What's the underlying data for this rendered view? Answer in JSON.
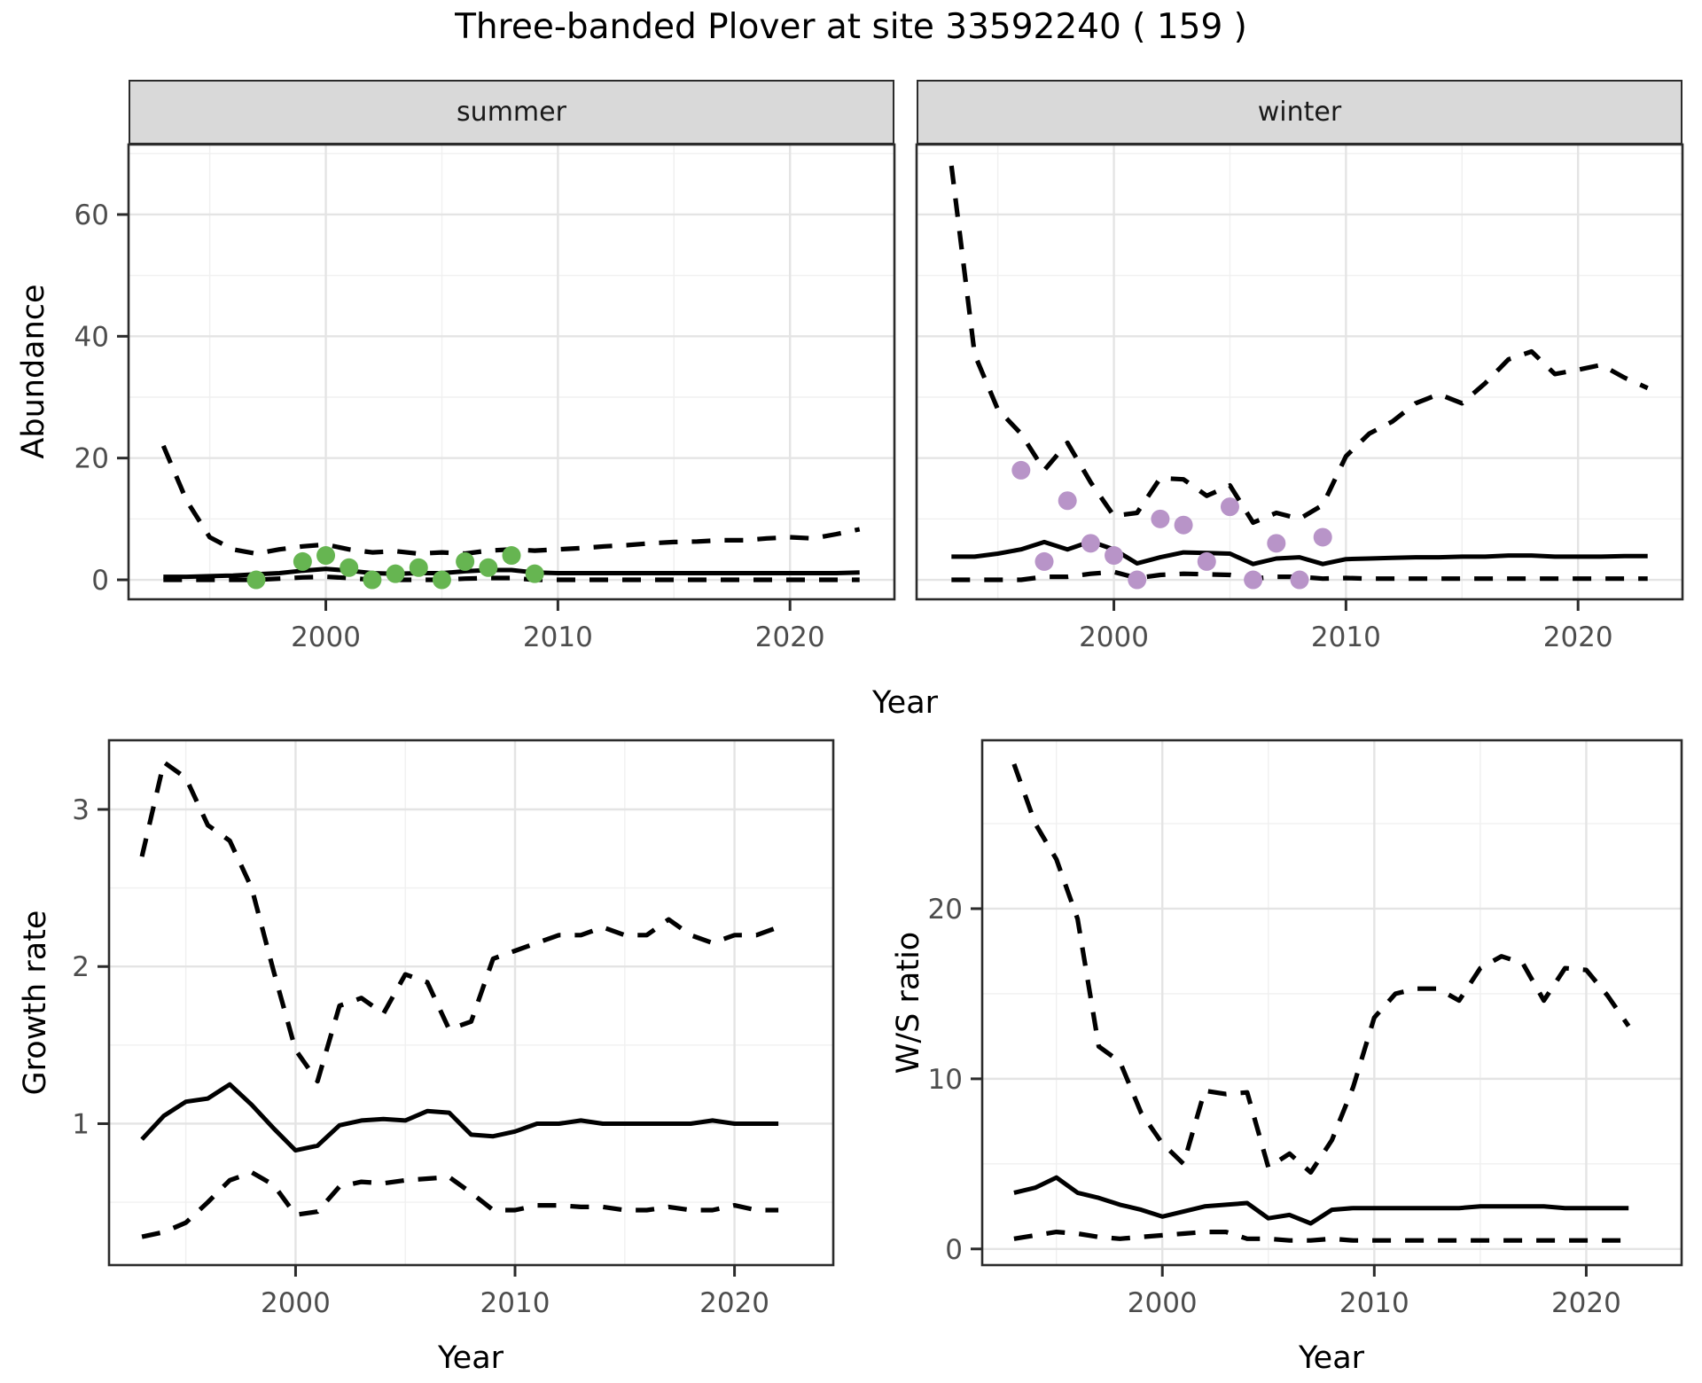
{
  "title": "Three-banded Plover at site 33592240 ( 159 )",
  "axes": {
    "top_ylabel": "Abundance",
    "top_xlabel": "Year",
    "growth_ylabel": "Growth rate",
    "growth_xlabel": "Year",
    "ws_ylabel": "W/S ratio",
    "ws_xlabel": "Year"
  },
  "colors": {
    "summer_points": "#66b551",
    "winter_points": "#b894c8",
    "line": "#000000",
    "strip_bg": "#d9d9d9",
    "panel_border": "#2b2b2b",
    "grid_major": "#e4e4e4",
    "grid_minor": "#f0f0f0",
    "tick_text": "#4d4d4d"
  },
  "chart_data": [
    {
      "id": "abundance-summer",
      "type": "line",
      "facet": "summer",
      "ylabel": "Abundance",
      "xlabel": "Year",
      "x": [
        1993,
        1994,
        1995,
        1996,
        1997,
        1998,
        1999,
        2000,
        2001,
        2002,
        2003,
        2004,
        2005,
        2006,
        2007,
        2008,
        2009,
        2010,
        2011,
        2012,
        2013,
        2014,
        2015,
        2016,
        2017,
        2018,
        2019,
        2020,
        2021,
        2022,
        2023
      ],
      "series": [
        {
          "name": "median",
          "style": "solid",
          "values": [
            0.5,
            0.5,
            0.6,
            0.7,
            0.9,
            1.1,
            1.5,
            1.8,
            1.5,
            1.1,
            1.0,
            1.1,
            1.1,
            1.4,
            1.6,
            1.6,
            1.2,
            1.1,
            1.1,
            1.1,
            1.1,
            1.1,
            1.1,
            1.1,
            1.1,
            1.1,
            1.1,
            1.1,
            1.1,
            1.1,
            1.2
          ]
        },
        {
          "name": "upper_95CI",
          "style": "dashed",
          "values": [
            22,
            13,
            7,
            5,
            4.3,
            5,
            5.5,
            5.8,
            5,
            4.5,
            4.7,
            4.3,
            4.5,
            4.3,
            4.8,
            5,
            4.8,
            5,
            5.2,
            5.5,
            5.7,
            6,
            6.2,
            6.3,
            6.5,
            6.5,
            6.8,
            7,
            6.8,
            7.5,
            8.3
          ]
        },
        {
          "name": "lower_95CI",
          "style": "dashed",
          "values": [
            0,
            0,
            0,
            0,
            0,
            0.2,
            0.4,
            0.5,
            0.3,
            0,
            0,
            0,
            0,
            0.2,
            0.3,
            0.3,
            0,
            0,
            0,
            0,
            0,
            0,
            0,
            0,
            0,
            0,
            0,
            0,
            0,
            0,
            0
          ]
        }
      ],
      "points": {
        "name": "observed_counts",
        "color": "#66b551",
        "x": [
          1997,
          1999,
          2000,
          2001,
          2002,
          2003,
          2004,
          2005,
          2006,
          2007,
          2008,
          2009
        ],
        "y": [
          0,
          3,
          4,
          2,
          0,
          1,
          2,
          0,
          3,
          2,
          4,
          1
        ]
      },
      "xlim": [
        1991.5,
        2024.5
      ],
      "ylim": [
        -3.2,
        71.5
      ],
      "x_ticks": [
        2000,
        2010,
        2020
      ],
      "x_minor": [
        1995,
        2005,
        2015
      ],
      "y_ticks": [
        0,
        20,
        40,
        60
      ],
      "y_minor": [
        10,
        30,
        50,
        70
      ]
    },
    {
      "id": "abundance-winter",
      "type": "line",
      "facet": "winter",
      "ylabel": "Abundance",
      "xlabel": "Year",
      "x": [
        1993,
        1994,
        1995,
        1996,
        1997,
        1998,
        1999,
        2000,
        2001,
        2002,
        2003,
        2004,
        2005,
        2006,
        2007,
        2008,
        2009,
        2010,
        2011,
        2012,
        2013,
        2014,
        2015,
        2016,
        2017,
        2018,
        2019,
        2020,
        2021,
        2022,
        2023
      ],
      "series": [
        {
          "name": "median",
          "style": "solid",
          "values": [
            3.8,
            3.8,
            4.3,
            5.0,
            6.2,
            5.0,
            6.3,
            5.0,
            2.7,
            3.7,
            4.5,
            4.4,
            4.3,
            2.6,
            3.5,
            3.7,
            2.6,
            3.4,
            3.5,
            3.6,
            3.7,
            3.7,
            3.8,
            3.8,
            4.0,
            4.0,
            3.8,
            3.8,
            3.8,
            3.9,
            3.9
          ]
        },
        {
          "name": "upper_95CI",
          "style": "dashed",
          "values": [
            68,
            37,
            28,
            24,
            18,
            22.5,
            16,
            10.5,
            11,
            16.7,
            16.5,
            13.8,
            15.5,
            9.4,
            11,
            10,
            12.3,
            20.3,
            24,
            26,
            29,
            30.5,
            29,
            32.3,
            36.2,
            37.5,
            33.8,
            34.5,
            35.3,
            33.2,
            31.5
          ]
        },
        {
          "name": "lower_95CI",
          "style": "dashed",
          "values": [
            0,
            0,
            0,
            0,
            0.5,
            0.5,
            1.0,
            1.3,
            0.3,
            0.8,
            1.0,
            0.9,
            0.8,
            0.2,
            0.5,
            0.5,
            0.2,
            0.3,
            0.2,
            0.2,
            0.2,
            0.2,
            0.2,
            0.2,
            0.2,
            0.2,
            0.2,
            0.2,
            0.2,
            0.2,
            0.2
          ]
        }
      ],
      "points": {
        "name": "observed_counts",
        "color": "#b894c8",
        "x": [
          1996,
          1997,
          1998,
          1999,
          2000,
          2001,
          2002,
          2003,
          2004,
          2005,
          2006,
          2007,
          2008,
          2009
        ],
        "y": [
          18,
          3,
          13,
          6,
          4,
          0,
          10,
          9,
          3,
          12,
          0,
          6,
          0,
          7
        ]
      },
      "xlim": [
        1991.5,
        2024.5
      ],
      "ylim": [
        -3.2,
        71.5
      ],
      "x_ticks": [
        2000,
        2010,
        2020
      ],
      "x_minor": [
        1995,
        2005,
        2015
      ],
      "y_ticks": [],
      "y_minor": [
        10,
        30,
        50,
        70
      ]
    },
    {
      "id": "growth-rate",
      "type": "line",
      "facet": "",
      "ylabel": "Growth rate",
      "xlabel": "Year",
      "x": [
        1993,
        1994,
        1995,
        1996,
        1997,
        1998,
        1999,
        2000,
        2001,
        2002,
        2003,
        2004,
        2005,
        2006,
        2007,
        2008,
        2009,
        2010,
        2011,
        2012,
        2013,
        2014,
        2015,
        2016,
        2017,
        2018,
        2019,
        2020,
        2021,
        2022
      ],
      "series": [
        {
          "name": "median",
          "style": "solid",
          "values": [
            0.9,
            1.05,
            1.14,
            1.16,
            1.25,
            1.12,
            0.97,
            0.83,
            0.86,
            0.99,
            1.02,
            1.03,
            1.02,
            1.08,
            1.07,
            0.93,
            0.92,
            0.95,
            1.0,
            1.0,
            1.02,
            1.0,
            1.0,
            1.0,
            1.0,
            1.0,
            1.02,
            1.0,
            1.0,
            1.0
          ]
        },
        {
          "name": "upper_95CI",
          "style": "dashed",
          "values": [
            2.7,
            3.3,
            3.2,
            2.9,
            2.8,
            2.5,
            1.97,
            1.47,
            1.27,
            1.75,
            1.8,
            1.7,
            1.95,
            1.9,
            1.6,
            1.65,
            2.05,
            2.1,
            2.15,
            2.2,
            2.2,
            2.25,
            2.2,
            2.2,
            2.3,
            2.2,
            2.15,
            2.2,
            2.2,
            2.25
          ]
        },
        {
          "name": "lower_95CI",
          "style": "dashed",
          "values": [
            0.28,
            0.31,
            0.37,
            0.5,
            0.64,
            0.69,
            0.61,
            0.42,
            0.44,
            0.6,
            0.63,
            0.62,
            0.64,
            0.65,
            0.66,
            0.56,
            0.45,
            0.45,
            0.48,
            0.48,
            0.47,
            0.47,
            0.45,
            0.45,
            0.47,
            0.45,
            0.45,
            0.48,
            0.45,
            0.45
          ]
        }
      ],
      "points": null,
      "xlim": [
        1991.5,
        2024.5
      ],
      "ylim": [
        0.1,
        3.44
      ],
      "x_ticks": [
        2000,
        2010,
        2020
      ],
      "x_minor": [
        1995,
        2005,
        2015
      ],
      "y_ticks": [
        1,
        2,
        3
      ],
      "y_minor": [
        0.5,
        1.5,
        2.5
      ]
    },
    {
      "id": "ws-ratio",
      "type": "line",
      "facet": "",
      "ylabel": "W/S ratio",
      "xlabel": "Year",
      "x": [
        1993,
        1994,
        1995,
        1996,
        1997,
        1998,
        1999,
        2000,
        2001,
        2002,
        2003,
        2004,
        2005,
        2006,
        2007,
        2008,
        2009,
        2010,
        2011,
        2012,
        2013,
        2014,
        2015,
        2016,
        2017,
        2018,
        2019,
        2020,
        2021,
        2022
      ],
      "series": [
        {
          "name": "median",
          "style": "solid",
          "values": [
            3.3,
            3.6,
            4.2,
            3.3,
            3.0,
            2.6,
            2.3,
            1.9,
            2.2,
            2.5,
            2.6,
            2.7,
            1.8,
            2.0,
            1.5,
            2.3,
            2.4,
            2.4,
            2.4,
            2.4,
            2.4,
            2.4,
            2.5,
            2.5,
            2.5,
            2.5,
            2.4,
            2.4,
            2.4,
            2.4
          ]
        },
        {
          "name": "upper_95CI",
          "style": "dashed",
          "values": [
            28.5,
            25.0,
            22.9,
            19.4,
            11.9,
            11.0,
            8.0,
            6.2,
            5.0,
            9.3,
            9.1,
            9.2,
            4.8,
            5.6,
            4.5,
            6.4,
            9.5,
            13.6,
            15.0,
            15.3,
            15.3,
            14.6,
            16.5,
            17.2,
            16.8,
            14.6,
            16.5,
            16.4,
            14.9,
            13.1
          ]
        },
        {
          "name": "lower_95CI",
          "style": "dashed",
          "values": [
            0.6,
            0.8,
            1.0,
            0.9,
            0.7,
            0.6,
            0.7,
            0.8,
            0.9,
            1.0,
            1.0,
            0.6,
            0.6,
            0.5,
            0.5,
            0.6,
            0.5,
            0.5,
            0.5,
            0.5,
            0.5,
            0.5,
            0.5,
            0.5,
            0.5,
            0.5,
            0.5,
            0.5,
            0.5,
            0.5
          ]
        }
      ],
      "points": null,
      "xlim": [
        1991.5,
        2024.5
      ],
      "ylim": [
        -0.95,
        29.9
      ],
      "x_ticks": [
        2000,
        2010,
        2020
      ],
      "x_minor": [
        1995,
        2005,
        2015
      ],
      "y_ticks": [
        0,
        10,
        20
      ],
      "y_minor": [
        5,
        15,
        25
      ]
    }
  ]
}
